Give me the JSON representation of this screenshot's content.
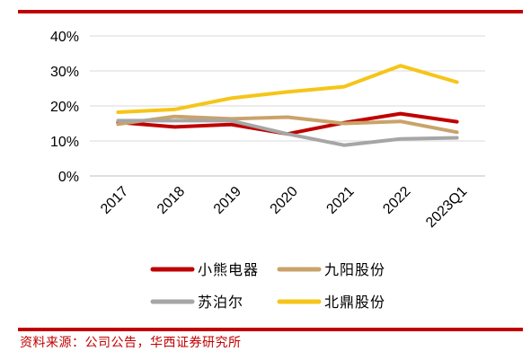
{
  "chart_data": {
    "type": "line",
    "title": "",
    "xlabel": "",
    "ylabel": "",
    "categories": [
      "2017",
      "2018",
      "2019",
      "2020",
      "2021",
      "2022",
      "2023Q1"
    ],
    "y_tick_labels": [
      "0%",
      "10%",
      "20%",
      "30%",
      "40%"
    ],
    "ylim": [
      0,
      40
    ],
    "grid": "horizontal",
    "legend_position": "bottom",
    "series": [
      {
        "name": "小熊电器",
        "color": "#c00000",
        "values": [
          15.3,
          14.0,
          14.7,
          12.0,
          15.2,
          17.8,
          15.5
        ]
      },
      {
        "name": "九阳股份",
        "color": "#c9a36a",
        "values": [
          14.8,
          17.0,
          16.3,
          16.8,
          15.0,
          15.6,
          12.5
        ]
      },
      {
        "name": "苏泊尔",
        "color": "#a6a6a6",
        "values": [
          15.8,
          15.8,
          15.8,
          12.0,
          8.8,
          10.6,
          10.9
        ]
      },
      {
        "name": "北鼎股份",
        "color": "#f5c518",
        "values": [
          18.2,
          19.0,
          22.2,
          24.0,
          25.5,
          31.5,
          26.8
        ]
      }
    ]
  },
  "source_text": "资料来源：公司公告，华西证券研究所"
}
